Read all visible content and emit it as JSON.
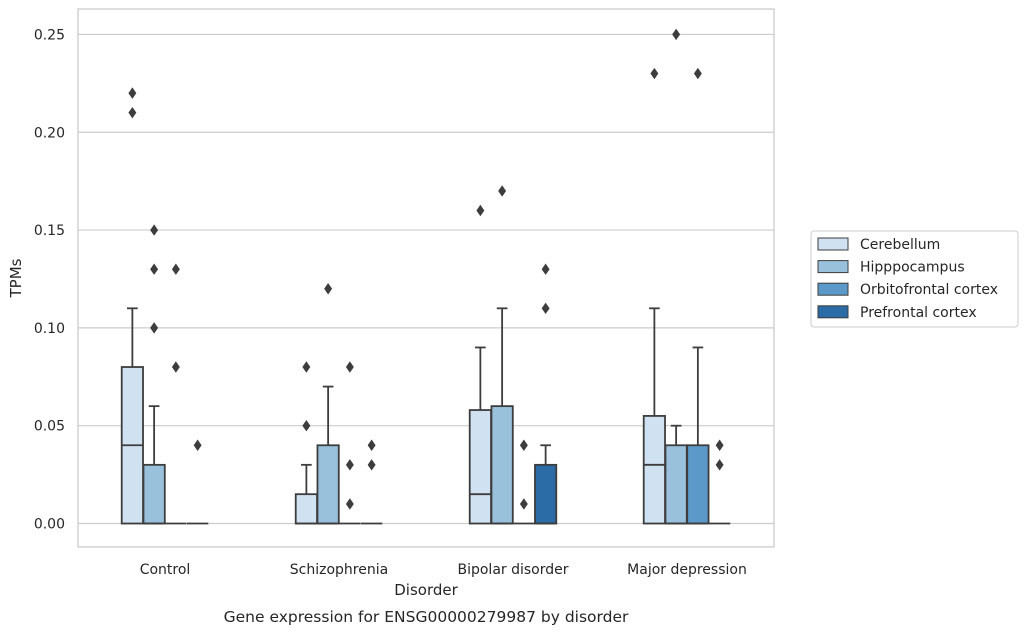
{
  "chart_data": {
    "type": "box",
    "caption": "Gene expression for ENSG00000279987 by disorder",
    "xlabel": "Disorder",
    "ylabel": "TPMs",
    "ylim": [
      -0.012,
      0.263
    ],
    "yticks": [
      0.0,
      0.05,
      0.1,
      0.15,
      0.2,
      0.25
    ],
    "ytick_labels": [
      "0.00",
      "0.05",
      "0.10",
      "0.15",
      "0.20",
      "0.25"
    ],
    "grid": "horizontal",
    "legend_position": "right",
    "categories": [
      "Control",
      "Schizophrenia",
      "Bipolar disorder",
      "Major depression"
    ],
    "series": [
      {
        "name": "Cerebellum",
        "color": "#d0e1f2",
        "boxes": [
          {
            "q1": 0.0,
            "median": 0.04,
            "q3": 0.08,
            "whisker_low": 0.0,
            "whisker_high": 0.11,
            "outliers": [
              0.21,
              0.22
            ]
          },
          {
            "q1": 0.0,
            "median": 0.0,
            "q3": 0.015,
            "whisker_low": 0.0,
            "whisker_high": 0.03,
            "outliers": [
              0.05,
              0.08
            ]
          },
          {
            "q1": 0.0,
            "median": 0.015,
            "q3": 0.058,
            "whisker_low": 0.0,
            "whisker_high": 0.09,
            "outliers": [
              0.16
            ]
          },
          {
            "q1": 0.0,
            "median": 0.03,
            "q3": 0.055,
            "whisker_low": 0.0,
            "whisker_high": 0.11,
            "outliers": [
              0.23
            ]
          }
        ]
      },
      {
        "name": "Hipppocampus",
        "color": "#9ac1db",
        "boxes": [
          {
            "q1": 0.0,
            "median": 0.0,
            "q3": 0.03,
            "whisker_low": 0.0,
            "whisker_high": 0.06,
            "outliers": [
              0.1,
              0.13,
              0.15
            ]
          },
          {
            "q1": 0.0,
            "median": 0.0,
            "q3": 0.04,
            "whisker_low": 0.0,
            "whisker_high": 0.07,
            "outliers": [
              0.12
            ]
          },
          {
            "q1": 0.0,
            "median": 0.0,
            "q3": 0.06,
            "whisker_low": 0.0,
            "whisker_high": 0.11,
            "outliers": [
              0.17
            ]
          },
          {
            "q1": 0.0,
            "median": 0.0,
            "q3": 0.04,
            "whisker_low": 0.0,
            "whisker_high": 0.05,
            "outliers": [
              0.25
            ]
          }
        ]
      },
      {
        "name": "Orbitofrontal cortex",
        "color": "#5b9ac8",
        "boxes": [
          {
            "q1": 0.0,
            "median": 0.0,
            "q3": 0.0,
            "whisker_low": 0.0,
            "whisker_high": 0.0,
            "outliers": [
              0.08,
              0.13
            ]
          },
          {
            "q1": 0.0,
            "median": 0.0,
            "q3": 0.0,
            "whisker_low": 0.0,
            "whisker_high": 0.0,
            "outliers": [
              0.01,
              0.03,
              0.08
            ]
          },
          {
            "q1": 0.0,
            "median": 0.0,
            "q3": 0.0,
            "whisker_low": 0.0,
            "whisker_high": 0.0,
            "outliers": [
              0.01,
              0.04
            ]
          },
          {
            "q1": 0.0,
            "median": 0.0,
            "q3": 0.04,
            "whisker_low": 0.0,
            "whisker_high": 0.09,
            "outliers": [
              0.23
            ]
          }
        ]
      },
      {
        "name": "Prefrontal cortex",
        "color": "#2b6ba6",
        "boxes": [
          {
            "q1": 0.0,
            "median": 0.0,
            "q3": 0.0,
            "whisker_low": 0.0,
            "whisker_high": 0.0,
            "outliers": [
              0.04
            ]
          },
          {
            "q1": 0.0,
            "median": 0.0,
            "q3": 0.0,
            "whisker_low": 0.0,
            "whisker_high": 0.0,
            "outliers": [
              0.03,
              0.04
            ]
          },
          {
            "q1": 0.0,
            "median": 0.0,
            "q3": 0.03,
            "whisker_low": 0.0,
            "whisker_high": 0.04,
            "outliers": [
              0.11,
              0.13
            ]
          },
          {
            "q1": 0.0,
            "median": 0.0,
            "q3": 0.0,
            "whisker_low": 0.0,
            "whisker_high": 0.0,
            "outliers": [
              0.03,
              0.04
            ]
          }
        ]
      }
    ]
  }
}
